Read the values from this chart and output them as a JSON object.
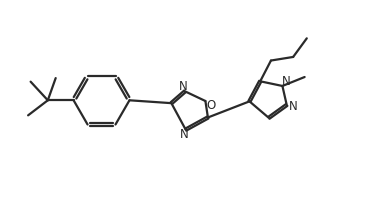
{
  "background": "#ffffff",
  "line_color": "#2a2a2a",
  "line_width": 1.6,
  "fig_width": 3.75,
  "fig_height": 1.97,
  "dpi": 100,
  "xlim": [
    0,
    10
  ],
  "ylim": [
    0,
    5.5
  ]
}
